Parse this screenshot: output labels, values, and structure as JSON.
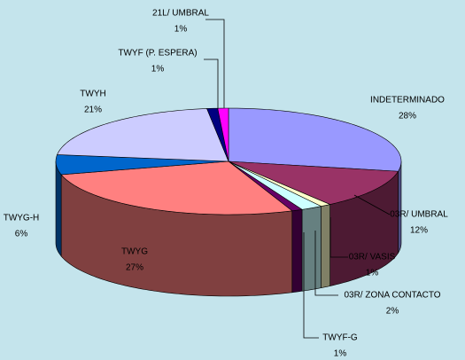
{
  "chart_data": {
    "type": "pie",
    "categories": [
      "INDETERMINADO",
      "03R/ UMBRAL",
      "03R/ VASIS",
      "03R/ ZONA CONTACTO",
      "TWYF-G",
      "TWYG",
      "TWYG-H",
      "TWYH",
      "TWYF (P. ESPERA)",
      "21L/ UMBRAL"
    ],
    "values": [
      28,
      12,
      1,
      2,
      1,
      27,
      6,
      21,
      1,
      1
    ],
    "value_labels": [
      "28%",
      "12%",
      "1%",
      "2%",
      "1%",
      "27%",
      "6%",
      "21%",
      "1%",
      "1%"
    ],
    "colors": [
      "#9999ff",
      "#993366",
      "#ffffcc",
      "#ccffff",
      "#660066",
      "#ff8080",
      "#0066cc",
      "#ccccff",
      "#000080",
      "#ff00ff"
    ]
  }
}
